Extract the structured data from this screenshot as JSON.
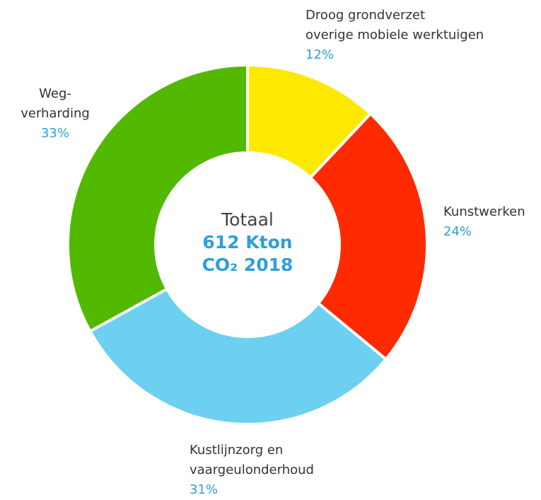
{
  "chart_data": {
    "type": "donut",
    "categories": [
      "Droog grondverzet\noverige mobiele werktuigen",
      "Kunstwerken",
      "Kustlijnzorg en\nvaargeulonderhoud",
      "Weg-\nverharding"
    ],
    "values": [
      12,
      24,
      31,
      33
    ],
    "value_labels": [
      "12%",
      "24%",
      "31%",
      "33%"
    ],
    "colors": [
      "#ffe800",
      "#ff2a00",
      "#6dd0f0",
      "#52b800"
    ],
    "center_label": [
      "Totaal",
      "612 Kton",
      "CO₂ 2018"
    ]
  }
}
